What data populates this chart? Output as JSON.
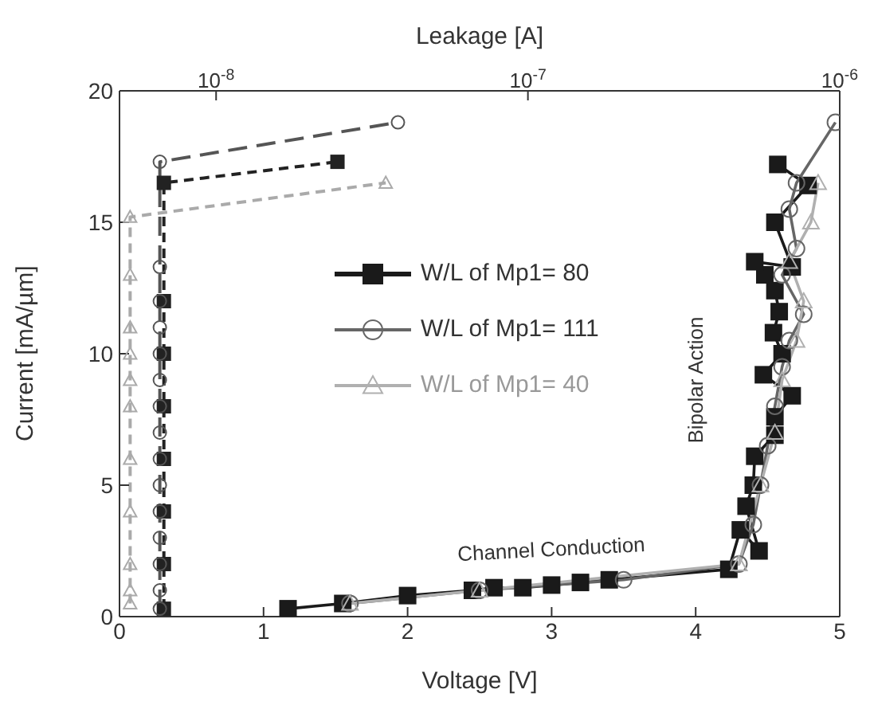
{
  "chart_data": {
    "type": "line",
    "xlabel": "Voltage [V]",
    "ylabel": "Current [mA/µm]",
    "x2label": "Leakage [A]",
    "xlim": [
      0,
      5
    ],
    "xticks": [
      0,
      1,
      2,
      3,
      4,
      5
    ],
    "ylim": [
      0,
      20
    ],
    "yticks": [
      0,
      5,
      10,
      15,
      20
    ],
    "x2lim": [
      4.9e-09,
      1e-06
    ],
    "x2ticks": [
      {
        "value": 1e-08,
        "label": "10$^{-8}$"
      },
      {
        "value": 1e-07,
        "label": "10$^{-7}$"
      },
      {
        "value": 1e-06,
        "label": "10$^{-6}$"
      }
    ],
    "log": "x2",
    "legend": "right",
    "series": [
      {
        "name": "W/L of Mp1= 80",
        "color": "#1a1a1a",
        "marker": "square",
        "line_style": "solid",
        "x": [
          1.17,
          1.55,
          2.0,
          2.45,
          2.6,
          2.8,
          3.0,
          3.2,
          3.4,
          4.23,
          4.31,
          4.44,
          4.35,
          4.4,
          4.41,
          4.55,
          4.55,
          4.67,
          4.47,
          4.6,
          4.54,
          4.58,
          4.55,
          4.48,
          4.41,
          4.67,
          4.55,
          4.78,
          4.57
        ],
        "values": [
          0.3,
          0.5,
          0.8,
          1.0,
          1.1,
          1.1,
          1.2,
          1.3,
          1.4,
          1.8,
          3.3,
          2.5,
          4.2,
          5.0,
          6.1,
          6.9,
          7.6,
          8.4,
          9.2,
          10.0,
          10.8,
          11.6,
          12.4,
          13.0,
          13.5,
          13.3,
          15.0,
          16.4,
          17.2
        ]
      },
      {
        "name": "W/L of Mp1= 111",
        "color": "#666666",
        "marker": "circle",
        "line_style": "solid",
        "x": [
          1.6,
          2.5,
          3.5,
          4.3,
          4.4,
          4.45,
          4.5,
          4.55,
          4.6,
          4.65,
          4.75,
          4.6,
          4.7,
          4.65,
          4.7,
          4.97
        ],
        "values": [
          0.5,
          1.0,
          1.4,
          2.0,
          3.5,
          5.0,
          6.5,
          8.0,
          9.5,
          10.5,
          11.5,
          13.0,
          14.0,
          15.5,
          16.5,
          18.8
        ]
      },
      {
        "name": "W/L of Mp1= 40",
        "color": "#b0b0b0",
        "marker": "triangle",
        "line_style": "solid",
        "x": [
          1.6,
          2.5,
          4.3,
          4.45,
          4.55,
          4.6,
          4.7,
          4.75,
          4.65,
          4.8,
          4.85
        ],
        "values": [
          0.5,
          1.0,
          2.0,
          5.0,
          7.0,
          9.0,
          10.5,
          12.0,
          13.5,
          15.0,
          16.5
        ]
      },
      {
        "color": "#222222",
        "marker": "square",
        "line_style": "dashed",
        "axis": "x2",
        "x": [
          6.8e-09,
          6.8e-09,
          6.8e-09,
          6.8e-09,
          6.8e-09,
          6.8e-09,
          6.8e-09,
          6.8e-09,
          2.45e-08
        ],
        "values": [
          0.3,
          2,
          4,
          6,
          8,
          10,
          12,
          16.5,
          17.3
        ]
      },
      {
        "color": "#555555",
        "marker": "circle",
        "line_style": "dashed",
        "axis": "x2",
        "x": [
          6.6e-09,
          6.6e-09,
          6.6e-09,
          6.6e-09,
          6.6e-09,
          6.6e-09,
          6.6e-09,
          6.6e-09,
          6.6e-09,
          6.6e-09,
          6.6e-09,
          6.6e-09,
          6.6e-09,
          6.6e-09,
          6.6e-09,
          3.83e-08
        ],
        "values": [
          0.3,
          1,
          2,
          3,
          4,
          5,
          6,
          7,
          8,
          9,
          10,
          11,
          12,
          13.3,
          17.3,
          18.8
        ]
      },
      {
        "color": "#aaaaaa",
        "marker": "triangle",
        "line_style": "dashed",
        "axis": "x2",
        "x": [
          5.3e-09,
          5.3e-09,
          5.3e-09,
          5.3e-09,
          5.3e-09,
          5.3e-09,
          5.3e-09,
          5.3e-09,
          5.3e-09,
          5.3e-09,
          5.3e-09,
          3.5e-08
        ],
        "values": [
          0.5,
          1,
          2,
          4,
          6,
          8,
          9,
          10,
          11,
          13,
          15.2,
          16.5
        ]
      }
    ],
    "annotations": [
      "Channel Conduction",
      "Bipolar Action"
    ]
  }
}
